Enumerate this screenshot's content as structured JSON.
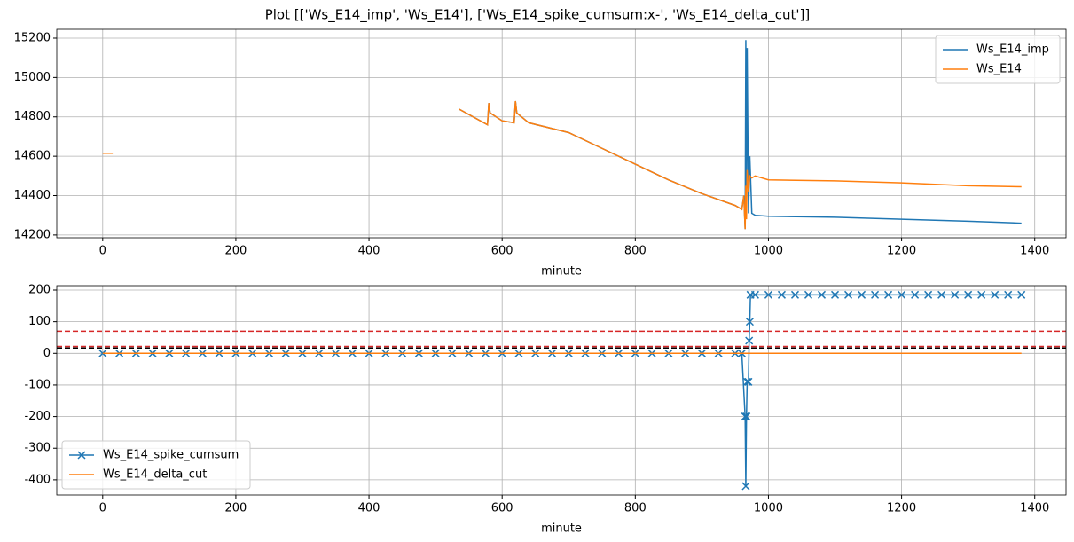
{
  "title": "Plot [['Ws_E14_imp', 'Ws_E14'], ['Ws_E14_spike_cumsum:x-', 'Ws_E14_delta_cut']]",
  "chart_data": [
    {
      "type": "line",
      "xlabel": "minute",
      "x": [
        0,
        15,
        200,
        535,
        578,
        580,
        582,
        600,
        618,
        620,
        622,
        640,
        700,
        750,
        800,
        850,
        900,
        950,
        960,
        963,
        965,
        966,
        967,
        968,
        970,
        972,
        975,
        980,
        1000,
        1100,
        1200,
        1300,
        1380
      ],
      "series": [
        {
          "name": "Ws_E14_imp",
          "color": "#1f77b4",
          "values": [
            14615,
            14615,
            null,
            14840,
            14760,
            14870,
            14820,
            14780,
            14770,
            14880,
            14820,
            14770,
            14720,
            14640,
            14560,
            14480,
            14410,
            14350,
            14330,
            14400,
            14230,
            15190,
            14300,
            15150,
            14310,
            14600,
            14310,
            14300,
            14295,
            14290,
            14280,
            14270,
            14260
          ]
        },
        {
          "name": "Ws_E14",
          "color": "#ff7f0e",
          "values": [
            14615,
            14615,
            null,
            14840,
            14760,
            14870,
            14820,
            14780,
            14770,
            14880,
            14820,
            14770,
            14720,
            14640,
            14560,
            14480,
            14410,
            14350,
            14330,
            14400,
            14230,
            14450,
            14280,
            14530,
            14420,
            14500,
            14490,
            14500,
            14480,
            14475,
            14465,
            14450,
            14445
          ]
        }
      ],
      "xlim": [
        -69,
        1447
      ],
      "xticks": [
        0,
        200,
        400,
        600,
        800,
        1000,
        1200,
        1400
      ],
      "ylim": [
        14186,
        15245
      ],
      "yticks": [
        14200,
        14400,
        14600,
        14800,
        15000,
        15200
      ],
      "grid": true,
      "legend": "upper right"
    },
    {
      "type": "line",
      "xlabel": "minute",
      "x": [
        0,
        25,
        50,
        75,
        100,
        125,
        150,
        175,
        200,
        225,
        250,
        275,
        300,
        325,
        350,
        375,
        400,
        425,
        450,
        475,
        500,
        525,
        550,
        575,
        600,
        625,
        650,
        675,
        700,
        725,
        750,
        775,
        800,
        825,
        850,
        875,
        900,
        925,
        950,
        960,
        965,
        966,
        967,
        968,
        970,
        971,
        972,
        973,
        980,
        1000,
        1020,
        1040,
        1060,
        1080,
        1100,
        1120,
        1140,
        1160,
        1180,
        1200,
        1220,
        1240,
        1260,
        1280,
        1300,
        1320,
        1340,
        1360,
        1380
      ],
      "series": [
        {
          "name": "Ws_E14_spike_cumsum",
          "color": "#1f77b4",
          "marker": "x",
          "values": [
            0,
            0,
            0,
            0,
            0,
            0,
            0,
            0,
            0,
            0,
            0,
            0,
            0,
            0,
            0,
            0,
            0,
            0,
            0,
            0,
            0,
            0,
            0,
            0,
            0,
            0,
            0,
            0,
            0,
            0,
            0,
            0,
            0,
            0,
            0,
            0,
            0,
            0,
            0,
            0,
            -200,
            -420,
            -200,
            -90,
            -90,
            40,
            100,
            185,
            185,
            185,
            185,
            185,
            185,
            185,
            185,
            185,
            185,
            185,
            185,
            185,
            185,
            185,
            185,
            185,
            185,
            185,
            185,
            185,
            185
          ]
        },
        {
          "name": "Ws_E14_delta_cut",
          "color": "#ff7f0e",
          "values": [
            0,
            0,
            0,
            0,
            0,
            0,
            0,
            0,
            0,
            0,
            0,
            0,
            0,
            0,
            0,
            0,
            0,
            0,
            0,
            0,
            0,
            0,
            0,
            0,
            0,
            0,
            0,
            0,
            0,
            0,
            0,
            0,
            0,
            0,
            0,
            0,
            0,
            0,
            0,
            0,
            0,
            0,
            0,
            0,
            0,
            0,
            0,
            0,
            0,
            0,
            0,
            0,
            0,
            0,
            0,
            0,
            0,
            0,
            0,
            0,
            0,
            0,
            0,
            0,
            0,
            0,
            0,
            0,
            0
          ]
        }
      ],
      "hlines": [
        {
          "value": 70,
          "color": "#d62728"
        },
        {
          "value": 22,
          "color": "#d62728"
        },
        {
          "value": 17,
          "color": "#000000"
        }
      ],
      "xlim": [
        -69,
        1447
      ],
      "xticks": [
        0,
        200,
        400,
        600,
        800,
        1000,
        1200,
        1400
      ],
      "ylim": [
        -448,
        214
      ],
      "yticks": [
        -400,
        -300,
        -200,
        -100,
        0,
        100,
        200
      ],
      "grid": true,
      "legend": "lower left"
    }
  ]
}
